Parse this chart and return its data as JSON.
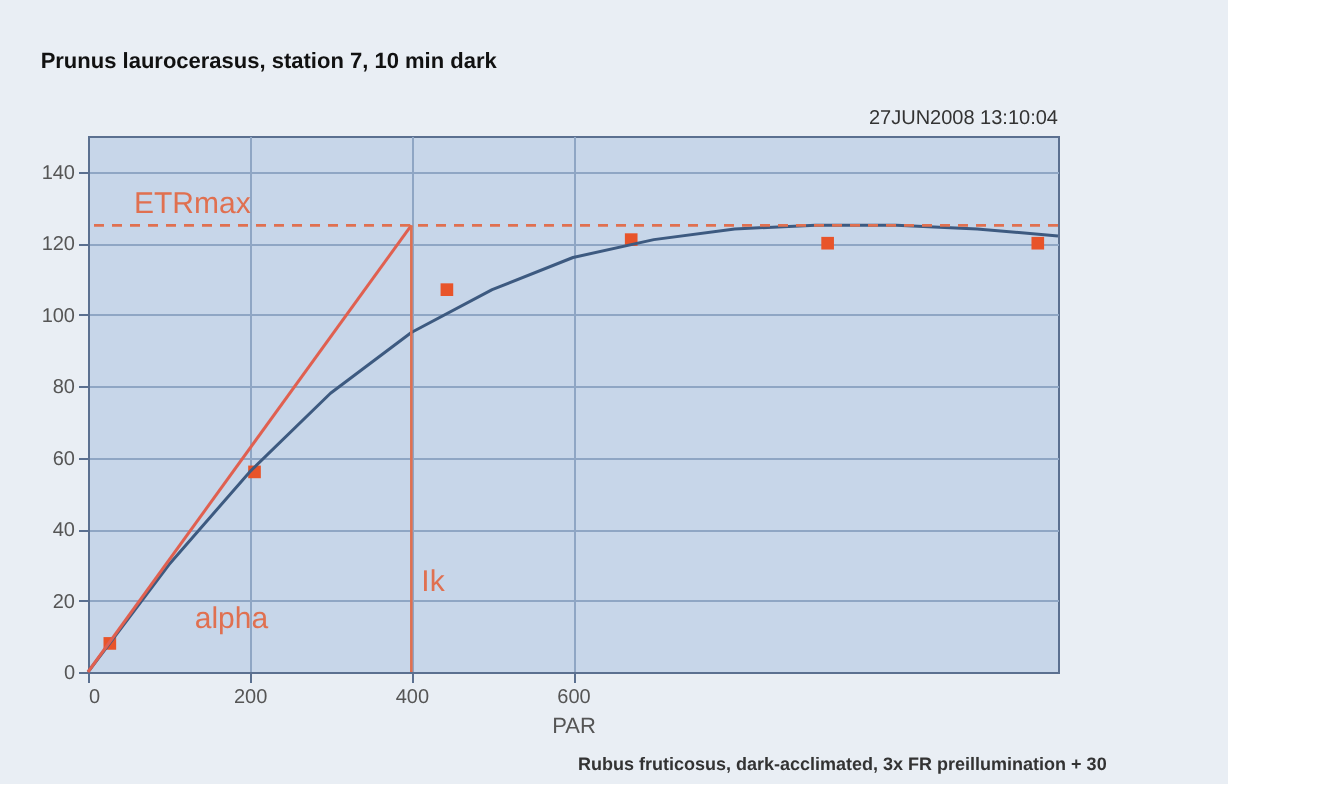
{
  "chart_data": {
    "type": "scatter",
    "title": "Prunus laurocerasus, station 7, 10 min dark",
    "xlabel": "PAR",
    "xlim": [
      0,
      1200
    ],
    "ylim": [
      0,
      150
    ],
    "xticks": [
      0,
      200,
      400,
      600
    ],
    "yticks": [
      0,
      20,
      40,
      60,
      80,
      100,
      120,
      140
    ],
    "grid": true,
    "series": [
      {
        "color": "#e8542a",
        "marker": "square",
        "x": [
          27,
          206,
          444,
          672,
          915,
          1175
        ],
        "values": [
          8,
          56,
          107,
          121,
          120,
          120
        ]
      },
      {
        "type": "line",
        "color": "#3d5a80",
        "line_style": "solid",
        "x": [
          0,
          100,
          200,
          300,
          400,
          500,
          600,
          700,
          800,
          900,
          1000,
          1100,
          1200
        ],
        "values": [
          0,
          30,
          56,
          78,
          95,
          107,
          116,
          121,
          124,
          125,
          125,
          124,
          122
        ]
      },
      {
        "type": "line",
        "color": "#e06050",
        "line_style": "solid",
        "x": [
          0,
          400
        ],
        "values": [
          0,
          125
        ]
      }
    ],
    "ref_lines": [
      {
        "axis": "y",
        "value": 125,
        "label": "ETRmax",
        "color": "#e07050",
        "line_style": "dashed"
      },
      {
        "axis": "x",
        "value": 400,
        "label": "Ik",
        "color": "#e07050",
        "line_style": "solid"
      }
    ],
    "annotations": [
      "alpha",
      "27JUN2008 13:10:04",
      "Rubus fruticosus, dark-acclimated, 3x FR preillumination + 30"
    ]
  }
}
